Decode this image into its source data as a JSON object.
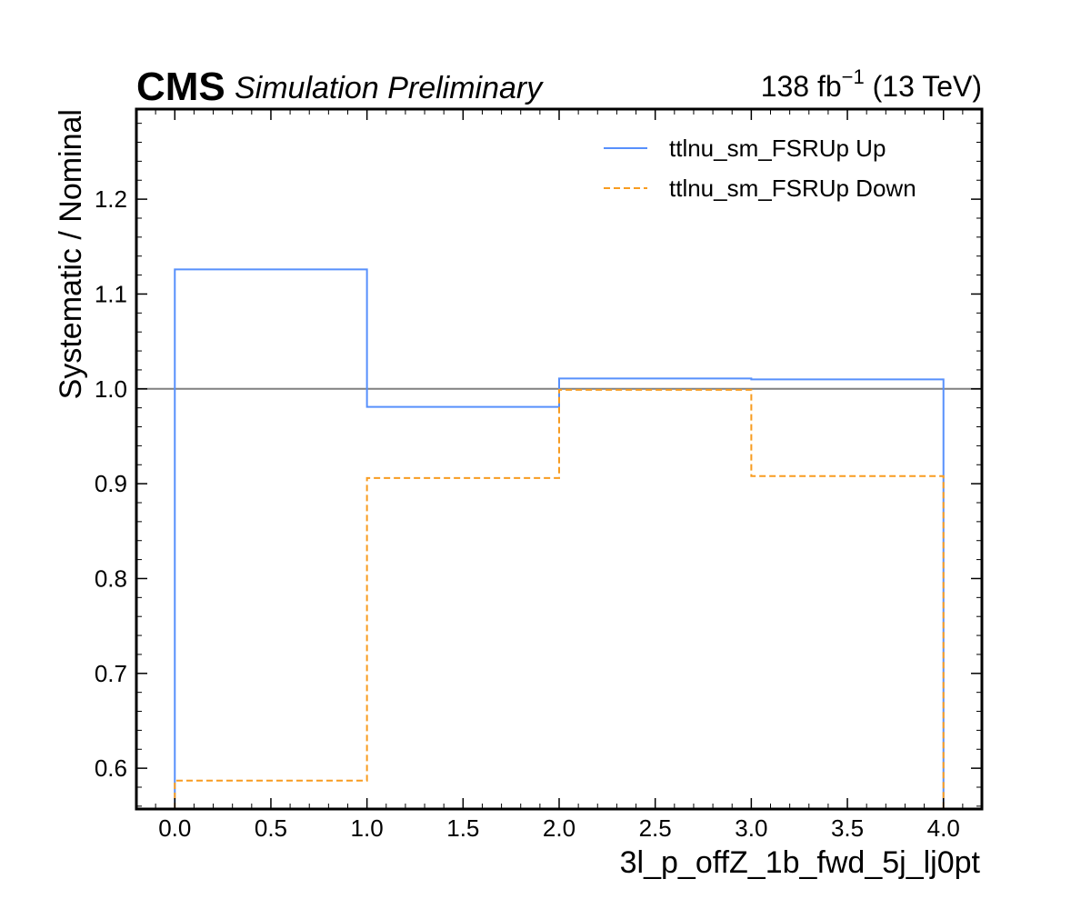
{
  "header": {
    "experiment": "CMS",
    "subtitle": "Simulation Preliminary",
    "lumi_value": "138 fb",
    "lumi_exponent": "−1",
    "energy": " (13 TeV)"
  },
  "chart_data": {
    "type": "line",
    "drawstyle": "steps",
    "xlabel": "3l_p_offZ_1b_fwd_5j_lj0pt",
    "ylabel": "Systematic / Nominal",
    "xlim": [
      -0.2,
      4.2
    ],
    "ylim": [
      0.557,
      1.295
    ],
    "xticks": [
      "0.0",
      "0.5",
      "1.0",
      "1.5",
      "2.0",
      "2.5",
      "3.0",
      "3.5",
      "4.0"
    ],
    "xtick_values": [
      0,
      0.5,
      1,
      1.5,
      2,
      2.5,
      3,
      3.5,
      4
    ],
    "yticks": [
      "0.6",
      "0.7",
      "0.8",
      "0.9",
      "1.0",
      "1.1",
      "1.2"
    ],
    "ytick_values": [
      0.6,
      0.7,
      0.8,
      0.9,
      1.0,
      1.1,
      1.2
    ],
    "reference_line": 1.0,
    "bin_edges": [
      0,
      1,
      2,
      3,
      4
    ],
    "series": [
      {
        "name": "ttlnu_sm_FSRUp Up",
        "values": [
          1.126,
          0.981,
          1.011,
          1.01
        ],
        "color": "#5790fc",
        "style": "solid"
      },
      {
        "name": "ttlnu_sm_FSRUp Down",
        "values": [
          0.587,
          0.906,
          0.999,
          0.908
        ],
        "color": "#f89c20",
        "style": "dashed"
      }
    ],
    "legend_position": "top-right",
    "grid": false
  }
}
